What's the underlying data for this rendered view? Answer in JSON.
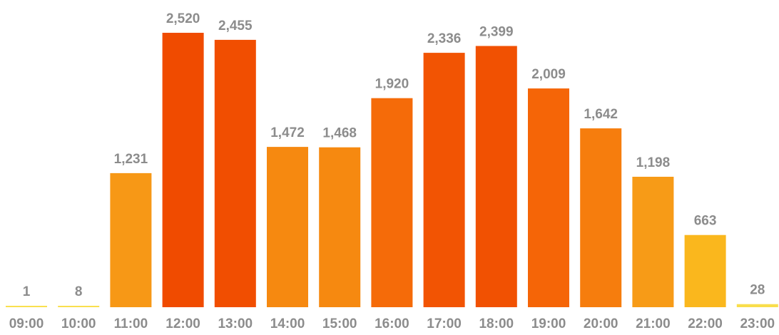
{
  "chart_data": {
    "type": "bar",
    "title": "",
    "xlabel": "",
    "ylabel": "",
    "categories": [
      "09:00",
      "10:00",
      "11:00",
      "12:00",
      "13:00",
      "14:00",
      "15:00",
      "16:00",
      "17:00",
      "18:00",
      "19:00",
      "20:00",
      "21:00",
      "22:00",
      "23:00"
    ],
    "values": [
      1,
      8,
      1231,
      2520,
      2455,
      1472,
      1468,
      1920,
      2336,
      2399,
      2009,
      1642,
      1198,
      663,
      28
    ],
    "data_labels": [
      "1",
      "8",
      "1,231",
      "2,520",
      "2,455",
      "1,472",
      "1,468",
      "1,920",
      "2,336",
      "2,399",
      "2,009",
      "1,642",
      "1,198",
      "663",
      "28"
    ],
    "ylim": [
      0,
      2520
    ],
    "grid": false,
    "legend": "none",
    "color_scale": [
      "#f9e04f",
      "#fbbe1e",
      "#f8a71c",
      "#f6860f",
      "#f56507",
      "#f04b00"
    ]
  }
}
